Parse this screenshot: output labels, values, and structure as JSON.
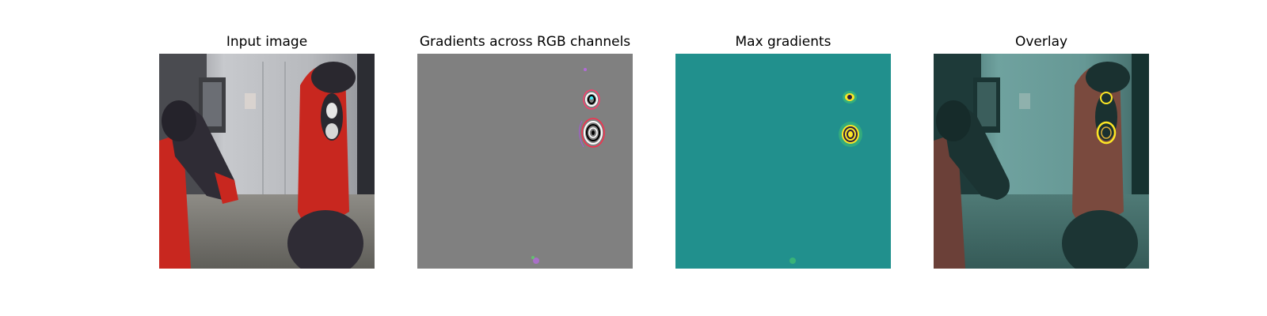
{
  "figure": {
    "panels": [
      {
        "title": "Input image"
      },
      {
        "title": "Gradients across RGB channels"
      },
      {
        "title": "Max gradients"
      },
      {
        "title": "Overlay"
      }
    ]
  },
  "colors": {
    "background": "#ffffff",
    "robot_red": "#c8271f",
    "robot_dark": "#2f2c35",
    "wall_gray": "#b9bcc0",
    "floor_gray": "#77766f",
    "gradient_gray": "#808080",
    "saliency_teal": "#21908d",
    "saliency_yellow": "#fde725",
    "overlay_teal": "#2a6f6c"
  }
}
